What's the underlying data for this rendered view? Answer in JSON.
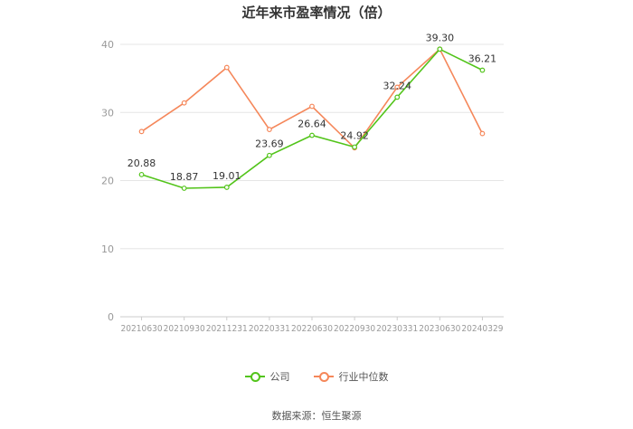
{
  "colors": {
    "company": "#52c41a",
    "industry": "#f5875a",
    "grid": "#e6e6e6",
    "axis_text": "#999999",
    "label_text": "#333333"
  },
  "legend": {
    "company_label": "公司",
    "industry_label": "行业中位数"
  },
  "footer": {
    "source": "数据来源：恒生聚源"
  },
  "chart_data": {
    "type": "line",
    "title": "近年来市盈率情况（倍）",
    "xlabel": "",
    "ylabel": "",
    "ylim": [
      0,
      40
    ],
    "yticks": [
      0,
      10,
      20,
      30,
      40
    ],
    "grid": true,
    "legend_position": "bottom",
    "categories": [
      "20210630",
      "20210930",
      "20211231",
      "20220331",
      "20220630",
      "20220930",
      "20230331",
      "20230630",
      "20240329"
    ],
    "series": [
      {
        "name": "公司",
        "values": [
          20.88,
          18.87,
          19.01,
          23.69,
          26.64,
          24.92,
          32.24,
          39.3,
          36.21
        ],
        "labels": [
          "20.88",
          "18.87",
          "19.01",
          "23.69",
          "26.64",
          "24.92",
          "32.24",
          "39.30",
          "36.21"
        ]
      },
      {
        "name": "行业中位数",
        "values": [
          27.2,
          31.4,
          36.6,
          27.5,
          30.9,
          24.8,
          33.7,
          39.3,
          26.9
        ]
      }
    ]
  }
}
